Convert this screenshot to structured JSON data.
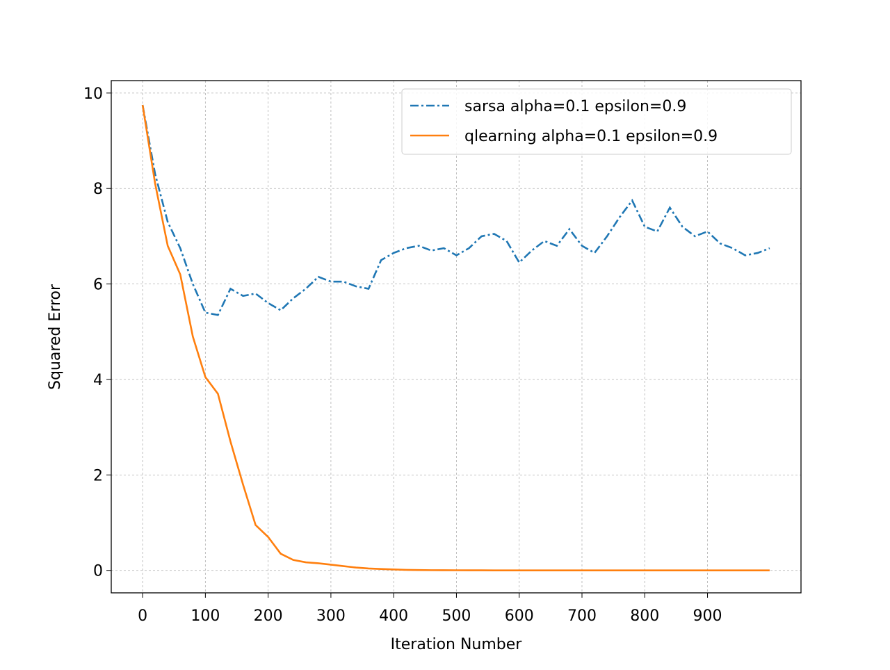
{
  "chart_data": {
    "type": "line",
    "xlabel": "Iteration Number",
    "ylabel": "Squared Error",
    "x": [
      0,
      20,
      40,
      60,
      80,
      100,
      120,
      140,
      160,
      180,
      200,
      220,
      240,
      260,
      280,
      300,
      320,
      340,
      360,
      380,
      400,
      420,
      440,
      460,
      480,
      500,
      520,
      540,
      560,
      580,
      600,
      620,
      640,
      660,
      680,
      700,
      720,
      740,
      760,
      780,
      800,
      820,
      840,
      860,
      880,
      900,
      920,
      940,
      960,
      980,
      999
    ],
    "series": [
      {
        "name": "sarsa alpha=0.1 epsilon=0.9",
        "color": "#1f77b4",
        "dash": "dashdot",
        "values": [
          9.75,
          8.3,
          7.3,
          6.75,
          6.0,
          5.4,
          5.35,
          5.9,
          5.75,
          5.8,
          5.6,
          5.45,
          5.7,
          5.9,
          6.15,
          6.05,
          6.05,
          5.95,
          5.9,
          6.5,
          6.65,
          6.75,
          6.8,
          6.7,
          6.75,
          6.6,
          6.75,
          7.0,
          7.05,
          6.9,
          6.45,
          6.7,
          6.9,
          6.8,
          7.15,
          6.8,
          6.65,
          7.0,
          7.4,
          7.75,
          7.2,
          7.1,
          7.6,
          7.2,
          7.0,
          7.1,
          6.85,
          6.75,
          6.6,
          6.65,
          6.75
        ]
      },
      {
        "name": "qlearning alpha=0.1 epsilon=0.9",
        "color": "#ff7f0e",
        "dash": "solid",
        "values": [
          9.75,
          8.1,
          6.8,
          6.2,
          4.9,
          4.05,
          3.7,
          2.7,
          1.8,
          0.95,
          0.7,
          0.35,
          0.22,
          0.17,
          0.15,
          0.12,
          0.09,
          0.06,
          0.04,
          0.03,
          0.02,
          0.012,
          0.008,
          0.005,
          0.004,
          0.003,
          0.002,
          0.002,
          0.001,
          0.001,
          0.001,
          0.001,
          0,
          0,
          0,
          0,
          0,
          0,
          0,
          0,
          0,
          0,
          0,
          0,
          0,
          0,
          0,
          0,
          0,
          0,
          0
        ]
      }
    ],
    "xlim": [
      -49.95,
      1048.95
    ],
    "xticks": [
      0,
      100,
      200,
      300,
      400,
      500,
      600,
      700,
      800,
      900
    ],
    "ylim": [
      -0.47,
      10.26
    ],
    "yticks": [
      0,
      2,
      4,
      6,
      8,
      10
    ],
    "grid": true,
    "legend": "upper right"
  }
}
